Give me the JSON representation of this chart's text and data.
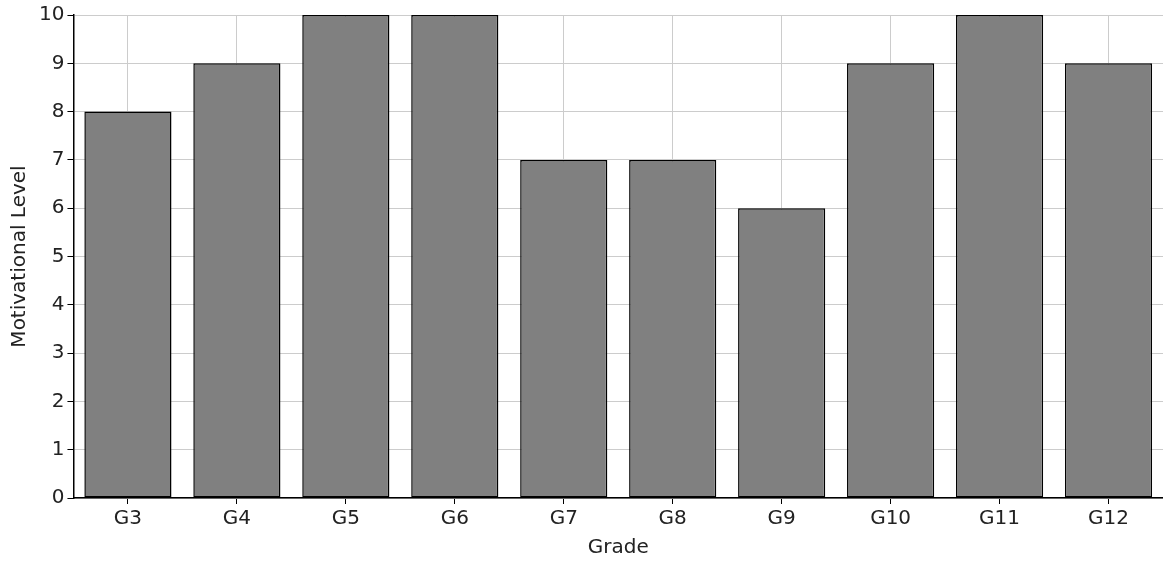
{
  "chart_data": {
    "type": "bar",
    "xlabel": "Grade",
    "ylabel": "Motivational Level",
    "categories": [
      "G3",
      "G4",
      "G5",
      "G6",
      "G7",
      "G8",
      "G9",
      "G10",
      "G11",
      "G12"
    ],
    "values": [
      8,
      9,
      10,
      10,
      7,
      7,
      6,
      9,
      10,
      9
    ],
    "color": "#808080",
    "ylim": [
      0,
      10
    ],
    "yticks": [
      0,
      1,
      2,
      3,
      4,
      5,
      6,
      7,
      8,
      9,
      10
    ],
    "grid": true
  }
}
